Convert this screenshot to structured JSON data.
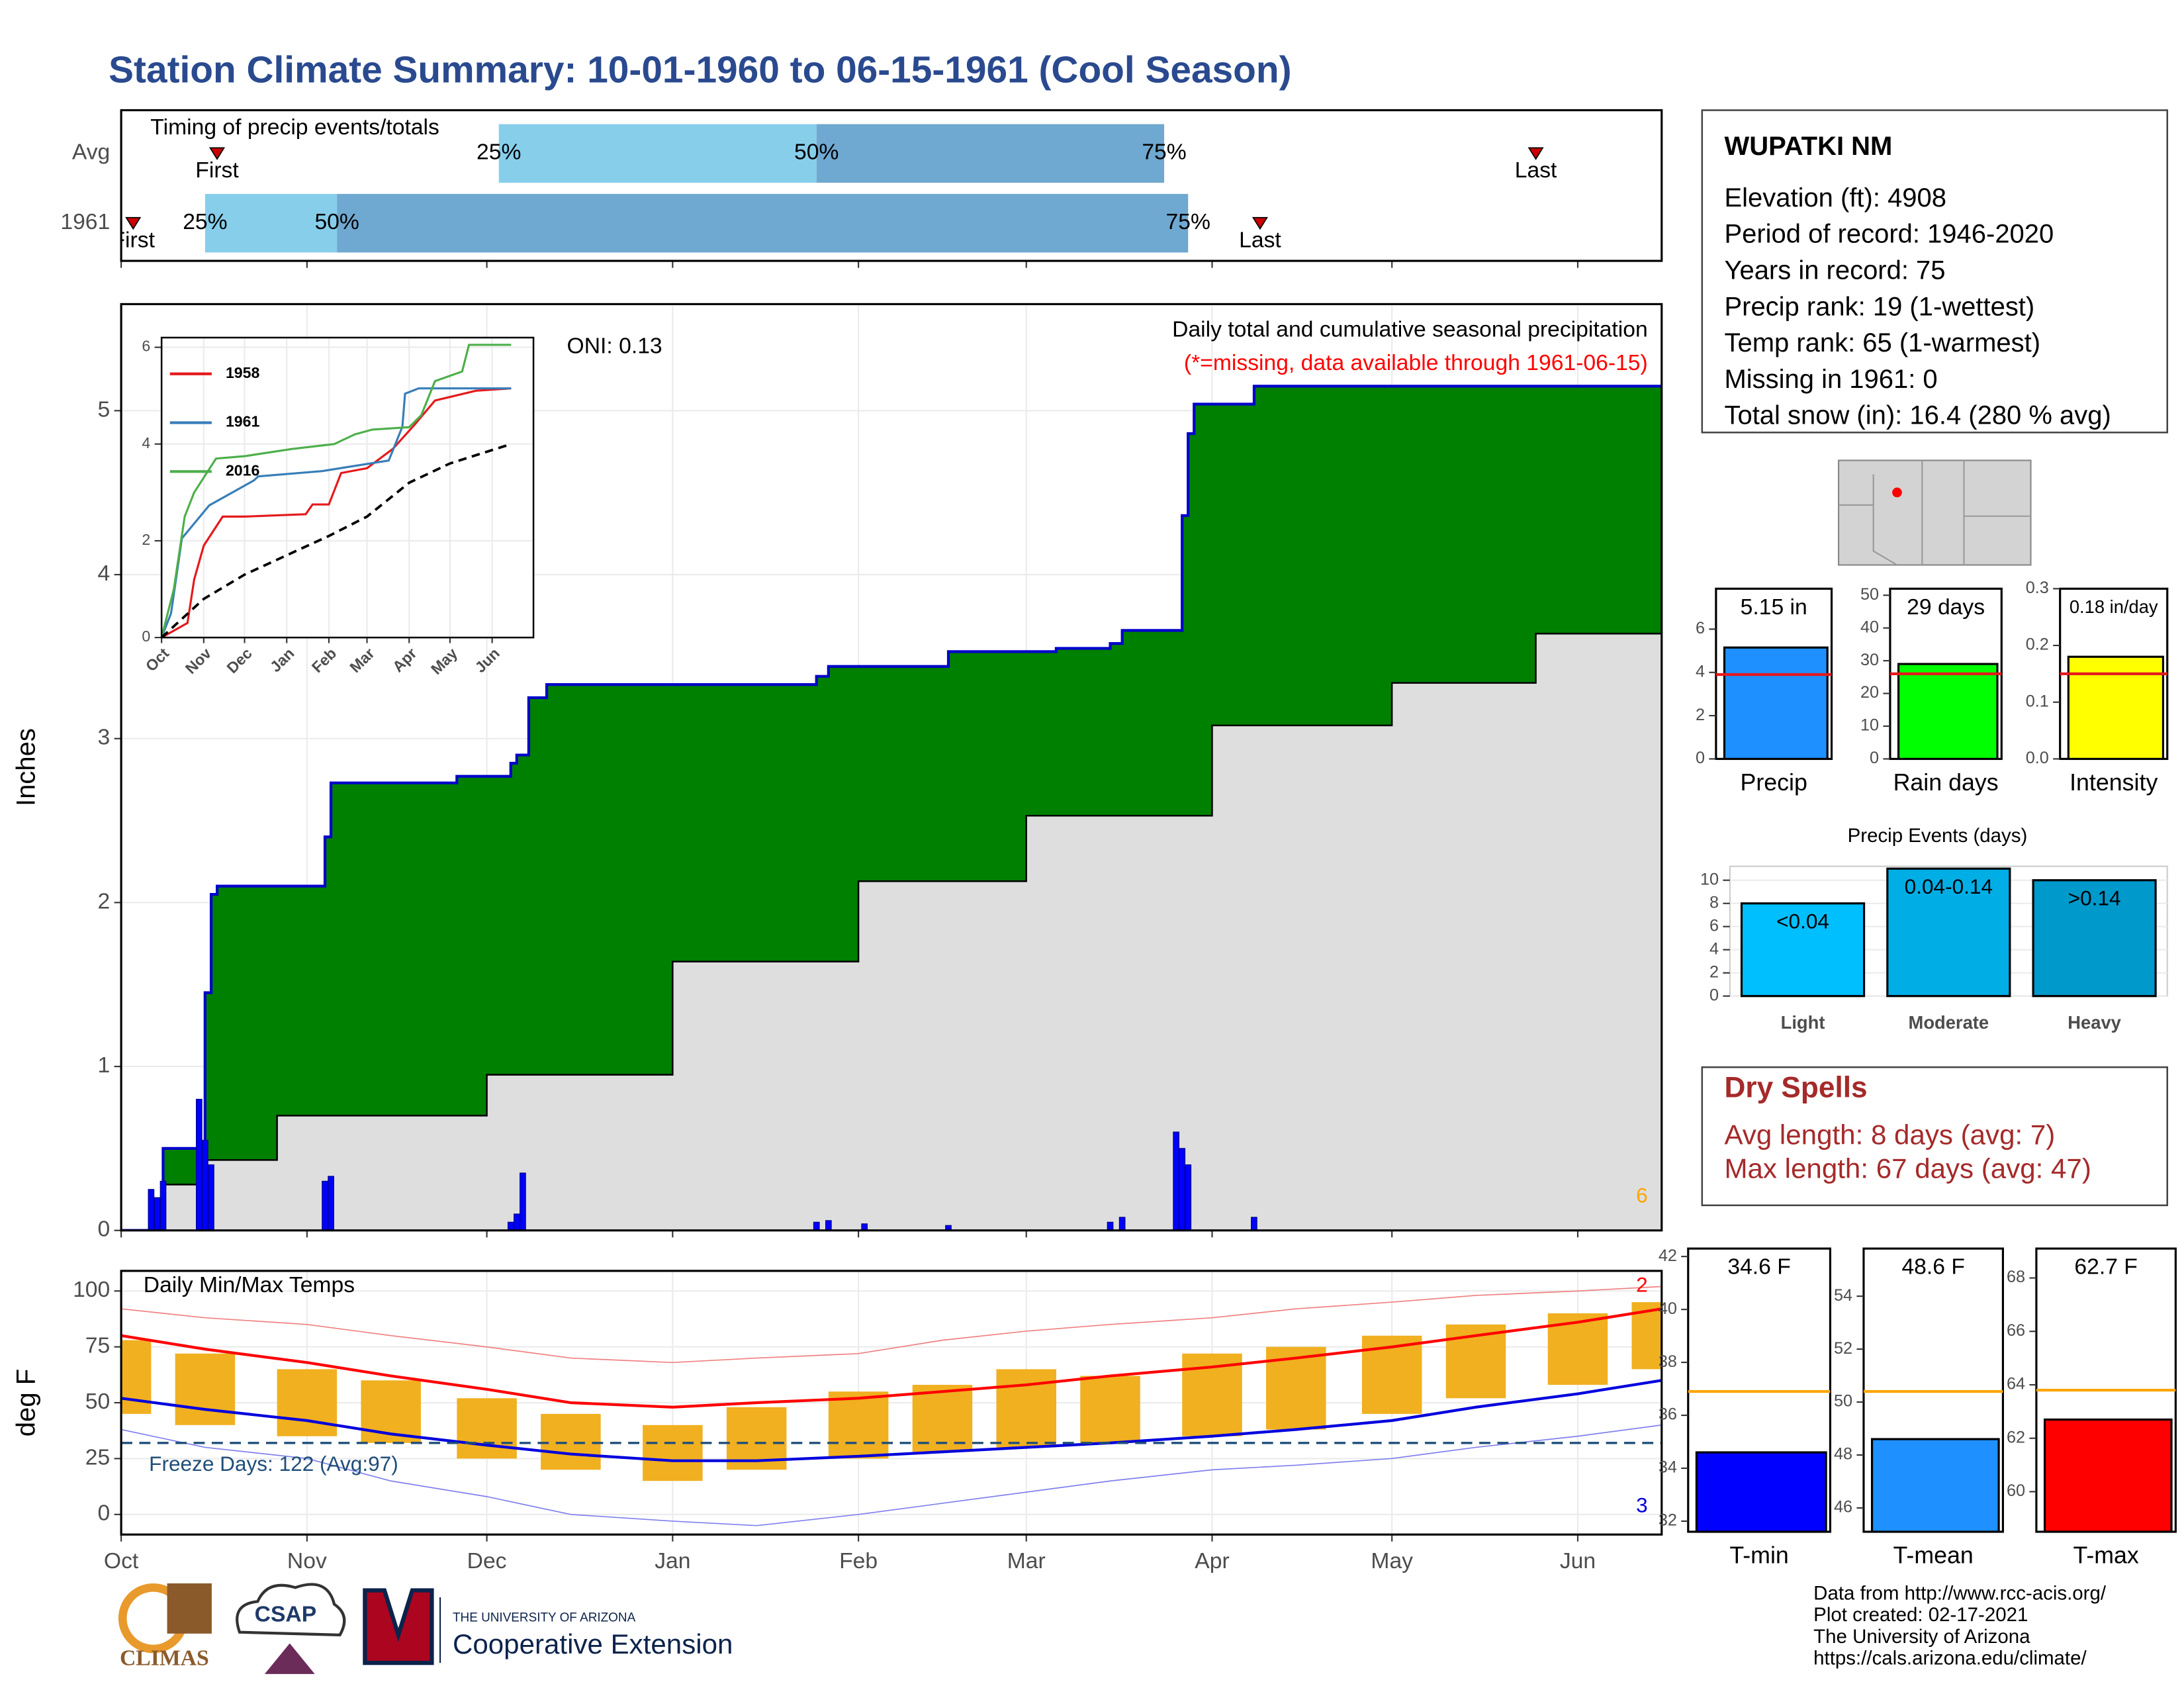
{
  "title": "Station Climate Summary: 10-01-1960 to 06-15-1961 (Cool Season)",
  "chart_data": [
    {
      "type": "timing",
      "title": "Timing of precip events/totals",
      "xlim": [
        "1960-10-01",
        "1961-06-15"
      ],
      "xticks": [
        "1960-10-01",
        "1960-11-01",
        "1960-12-01",
        "1961-01-01",
        "1961-02-01",
        "1961-03-01",
        "1961-04-01",
        "1961-05-01",
        "1961-06-01"
      ],
      "labels": {
        "first": "First",
        "last": "Last",
        "q25": "25%",
        "q50": "50%",
        "q75": "75%"
      },
      "colors": {
        "early": "#87ceeb",
        "late": "#6fa8d0",
        "marker": "#cc0000"
      },
      "rows": [
        {
          "name": "Avg",
          "first": "1960-10-17",
          "q25": "1960-12-03",
          "q50": "1961-01-25",
          "q75": "1961-03-24",
          "last": "1961-05-25"
        },
        {
          "name": "1961",
          "first": "1960-10-03",
          "q25": "1960-10-15",
          "q50": "1960-11-06",
          "q75": "1961-03-28",
          "last": "1961-04-09"
        }
      ]
    },
    {
      "type": "area",
      "ylabel": "Inches",
      "subtitle": "Daily total and cumulative seasonal precipitation",
      "note": "(*=missing, data available through 1961-06-15)",
      "oni": "ONI: 0.13",
      "corner_label": "6",
      "corner_color": "#ffa500",
      "note_color": "#ff0000",
      "xlim": [
        "1960-10-01",
        "1961-06-15"
      ],
      "xticks": [
        "1960-10-01",
        "1960-11-01",
        "1960-12-01",
        "1961-01-01",
        "1961-02-01",
        "1961-03-01",
        "1961-04-01",
        "1961-05-01",
        "1961-06-01"
      ],
      "ylim": [
        0,
        5.65
      ],
      "yticks": [
        0,
        1,
        2,
        3,
        4,
        5
      ],
      "grid": true,
      "series": [
        {
          "fill": "#008000",
          "stroke": "#0000cc",
          "x": [
            "1960-10-01",
            "1960-10-06",
            "1960-10-08",
            "1960-10-15",
            "1960-10-16",
            "1960-10-17",
            "1960-11-04",
            "1960-11-05",
            "1960-11-26",
            "1960-12-05",
            "1960-12-06",
            "1960-12-08",
            "1960-12-11",
            "1961-01-25",
            "1961-01-27",
            "1961-02-16",
            "1961-03-06",
            "1961-03-15",
            "1961-03-17",
            "1961-03-27",
            "1961-03-28",
            "1961-03-29",
            "1961-04-08",
            "1961-06-15"
          ],
          "values": [
            0,
            0.12,
            0.5,
            1.45,
            2.05,
            2.1,
            2.4,
            2.73,
            2.77,
            2.85,
            2.9,
            3.25,
            3.33,
            3.38,
            3.44,
            3.53,
            3.55,
            3.58,
            3.66,
            4.36,
            4.86,
            5.04,
            5.15,
            5.15
          ]
        },
        {
          "fill": "#dedede",
          "stroke": "#000000",
          "x": [
            "1960-10-01",
            "1960-10-08",
            "1960-10-15",
            "1960-10-27",
            "1960-12-01",
            "1961-01-01",
            "1961-02-01",
            "1961-03-01",
            "1961-04-01",
            "1961-05-01",
            "1961-05-25",
            "1961-06-15"
          ],
          "values": [
            0,
            0.28,
            0.43,
            0.7,
            0.95,
            1.64,
            2.13,
            2.53,
            3.08,
            3.34,
            3.64,
            3.83
          ]
        }
      ],
      "bars": {
        "color": "#0000ff",
        "x": [
          "1960-10-06",
          "1960-10-07",
          "1960-10-08",
          "1960-10-14",
          "1960-10-15",
          "1960-10-16",
          "1960-11-04",
          "1960-11-05",
          "1960-12-05",
          "1960-12-06",
          "1960-12-07",
          "1961-01-25",
          "1961-01-27",
          "1961-02-02",
          "1961-02-16",
          "1961-03-15",
          "1961-03-17",
          "1961-03-26",
          "1961-03-27",
          "1961-03-28",
          "1961-04-08"
        ],
        "values": [
          0.25,
          0.2,
          0.3,
          0.8,
          0.55,
          0.4,
          0.3,
          0.33,
          0.05,
          0.1,
          0.35,
          0.05,
          0.06,
          0.04,
          0.03,
          0.05,
          0.08,
          0.6,
          0.5,
          0.4,
          0.08
        ]
      }
    },
    {
      "type": "line",
      "xlim": [
        "1960-10-01",
        "1961-06-15"
      ],
      "xticks": [
        {
          "value": "1960-10-01",
          "label": "Oct"
        },
        {
          "value": "1960-11-01",
          "label": "Nov"
        },
        {
          "value": "1960-12-01",
          "label": "Dec"
        },
        {
          "value": "1961-01-01",
          "label": "Jan"
        },
        {
          "value": "1961-02-01",
          "label": "Feb"
        },
        {
          "value": "1961-03-01",
          "label": "Mar"
        },
        {
          "value": "1961-04-01",
          "label": "Apr"
        },
        {
          "value": "1961-05-01",
          "label": "May"
        },
        {
          "value": "1961-06-01",
          "label": "Jun"
        }
      ],
      "ylim": [
        0,
        6.2
      ],
      "yticks": [
        0,
        2,
        4,
        6
      ],
      "grid": true,
      "series": [
        {
          "name": "1958",
          "color": "#e41a1c",
          "x": [
            "1960-10-01",
            "1960-10-20",
            "1960-10-25",
            "1960-11-01",
            "1960-11-15",
            "1960-12-01",
            "1961-01-15",
            "1961-01-20",
            "1961-02-01",
            "1961-02-10",
            "1961-03-01",
            "1961-03-20",
            "1961-04-05",
            "1961-04-20",
            "1961-05-05",
            "1961-05-20",
            "1961-06-15"
          ],
          "values": [
            0,
            0.3,
            1.2,
            1.9,
            2.5,
            2.5,
            2.55,
            2.75,
            2.75,
            3.4,
            3.5,
            3.9,
            4.4,
            4.9,
            5.0,
            5.1,
            5.15
          ]
        },
        {
          "name": "1961",
          "color": "#377eb8",
          "x": [
            "1960-10-01",
            "1960-10-08",
            "1960-10-16",
            "1960-11-05",
            "1960-12-08",
            "1960-12-11",
            "1961-01-27",
            "1961-03-17",
            "1961-03-27",
            "1961-03-29",
            "1961-04-08",
            "1961-06-15"
          ],
          "values": [
            0,
            0.5,
            2.05,
            2.73,
            3.25,
            3.33,
            3.44,
            3.66,
            4.36,
            5.04,
            5.15,
            5.15
          ]
        },
        {
          "name": "2016",
          "color": "#4daf4a",
          "x": [
            "1960-10-01",
            "1960-10-10",
            "1960-10-18",
            "1960-10-25",
            "1960-11-10",
            "1960-12-01",
            "1961-01-05",
            "1961-02-05",
            "1961-02-20",
            "1961-03-05",
            "1961-04-01",
            "1961-04-10",
            "1961-04-20",
            "1961-05-10",
            "1961-05-15",
            "1961-06-15"
          ],
          "values": [
            0,
            1.0,
            2.5,
            3.0,
            3.7,
            3.75,
            3.9,
            4.0,
            4.2,
            4.3,
            4.35,
            4.6,
            5.3,
            5.5,
            6.05,
            6.05
          ]
        },
        {
          "color": "#000000",
          "dash": true,
          "x": [
            "1960-10-01",
            "1960-11-01",
            "1960-12-01",
            "1961-01-01",
            "1961-02-01",
            "1961-03-01",
            "1961-04-01",
            "1961-05-01",
            "1961-06-15"
          ],
          "values": [
            0,
            0.8,
            1.3,
            1.7,
            2.1,
            2.5,
            3.2,
            3.6,
            4.0
          ]
        }
      ]
    },
    {
      "type": "temps",
      "title": "Daily Min/Max Temps",
      "ylabel": "deg F",
      "xlim": [
        "1960-10-01",
        "1961-06-15"
      ],
      "xticks": [
        {
          "value": "1960-10-01",
          "label": "Oct"
        },
        {
          "value": "1960-11-01",
          "label": "Nov"
        },
        {
          "value": "1960-12-01",
          "label": "Dec"
        },
        {
          "value": "1961-01-01",
          "label": "Jan"
        },
        {
          "value": "1961-02-01",
          "label": "Feb"
        },
        {
          "value": "1961-03-01",
          "label": "Mar"
        },
        {
          "value": "1961-04-01",
          "label": "Apr"
        },
        {
          "value": "1961-05-01",
          "label": "May"
        },
        {
          "value": "1961-06-01",
          "label": "Jun"
        }
      ],
      "ylim": [
        -9,
        109
      ],
      "yticks": [
        0,
        25,
        50,
        75,
        100
      ],
      "grid": true,
      "x": [
        "1960-10-01",
        "1960-10-15",
        "1960-11-01",
        "1960-11-15",
        "1960-12-01",
        "1960-12-15",
        "1961-01-01",
        "1961-01-15",
        "1961-02-01",
        "1961-02-15",
        "1961-03-01",
        "1961-03-15",
        "1961-04-01",
        "1961-04-15",
        "1961-05-01",
        "1961-05-15",
        "1961-06-01",
        "1961-06-15"
      ],
      "range": {
        "color": "#f0b020",
        "high": [
          78,
          72,
          65,
          60,
          52,
          45,
          40,
          48,
          55,
          58,
          65,
          62,
          72,
          75,
          80,
          85,
          90,
          95
        ],
        "low": [
          45,
          40,
          35,
          32,
          25,
          20,
          15,
          20,
          25,
          28,
          30,
          32,
          35,
          38,
          45,
          52,
          58,
          65
        ]
      },
      "series": [
        {
          "color": "#f08080",
          "style": "thin",
          "values": [
            92,
            88,
            85,
            80,
            75,
            70,
            68,
            70,
            72,
            78,
            82,
            85,
            88,
            92,
            95,
            98,
            100,
            102
          ]
        },
        {
          "color": "#ff0000",
          "values": [
            80,
            74,
            68,
            62,
            56,
            50,
            48,
            50,
            52,
            55,
            58,
            62,
            66,
            70,
            75,
            80,
            86,
            92
          ]
        },
        {
          "color": "#0000dd",
          "values": [
            52,
            47,
            42,
            36,
            31,
            27,
            24,
            24,
            26,
            28,
            30,
            32,
            35,
            38,
            42,
            48,
            54,
            60
          ]
        },
        {
          "color": "#8080ee",
          "style": "thin",
          "values": [
            38,
            30,
            25,
            15,
            8,
            0,
            -3,
            -5,
            0,
            5,
            10,
            15,
            20,
            22,
            25,
            30,
            35,
            40
          ]
        }
      ],
      "freeze": {
        "value": 32,
        "label": "Freeze Days: 122 (Avg:97)",
        "color": "#1f4e79"
      },
      "corner_labels": [
        {
          "label": "2",
          "color": "#ff0000"
        },
        {
          "label": "3",
          "color": "#0000dd"
        }
      ]
    },
    {
      "type": "gauge",
      "categories": [
        "Precip"
      ],
      "values": [
        5.15
      ],
      "value_labels": [
        "5.15 in"
      ],
      "avg": 3.9,
      "color": "#1e90ff",
      "avg_color": "#e41a1c",
      "ylim": [
        0,
        7.87
      ],
      "yticks": [
        0,
        2,
        4,
        6
      ]
    },
    {
      "type": "gauge",
      "categories": [
        "Rain days"
      ],
      "values": [
        29
      ],
      "value_labels": [
        "29 days"
      ],
      "avg": 26,
      "color": "#00ff00",
      "avg_color": "#e41a1c",
      "ylim": [
        0,
        52
      ],
      "yticks": [
        0,
        10,
        20,
        30,
        40,
        50
      ]
    },
    {
      "type": "gauge",
      "categories": [
        "Intensity"
      ],
      "values": [
        0.18
      ],
      "value_labels": [
        "0.18 in/day"
      ],
      "avg": 0.15,
      "color": "#ffff00",
      "avg_color": "#e41a1c",
      "ylim": [
        0,
        0.3
      ],
      "yticks": [
        {
          "value": 0,
          "label": "0.0"
        },
        0.1,
        0.2,
        0.3
      ]
    },
    {
      "type": "bar",
      "title": "Precip Events (days)",
      "categories": [
        "Light",
        "Moderate",
        "Heavy"
      ],
      "values": [
        8,
        11,
        10
      ],
      "bar_labels": [
        "<0.04",
        "0.04-0.14",
        ">0.14"
      ],
      "colors": [
        "#00bfff",
        "#00aee6",
        "#0099cc"
      ],
      "ylim": [
        0,
        11.2
      ],
      "yticks": [
        0,
        2,
        4,
        6,
        8,
        10
      ],
      "grid": true
    },
    {
      "type": "gauge",
      "categories": [
        "T-min"
      ],
      "values": [
        34.6
      ],
      "value_labels": [
        "34.6 F"
      ],
      "avg": 36.9,
      "color": "#0000ff",
      "avg_color": "#ffa500",
      "ylim": [
        31.6,
        42.3
      ],
      "yticks": [
        32,
        34,
        36,
        38,
        40,
        42
      ]
    },
    {
      "type": "gauge",
      "categories": [
        "T-mean"
      ],
      "values": [
        48.6
      ],
      "value_labels": [
        "48.6 F"
      ],
      "avg": 50.4,
      "color": "#1e90ff",
      "avg_color": "#ffa500",
      "ylim": [
        45.1,
        55.8
      ],
      "yticks": [
        46,
        48,
        50,
        52,
        54
      ]
    },
    {
      "type": "gauge",
      "categories": [
        "T-max"
      ],
      "values": [
        62.7
      ],
      "value_labels": [
        "62.7 F"
      ],
      "avg": 63.8,
      "color": "#ff0000",
      "avg_color": "#ffa500",
      "ylim": [
        58.5,
        69.1
      ],
      "yticks": [
        60,
        62,
        64,
        66,
        68
      ]
    }
  ],
  "station": {
    "name": "WUPATKI NM",
    "lines": [
      "Elevation (ft): 4908",
      "Period of record: 1946-2020",
      "Years in record: 75",
      "Precip rank: 19 (1-wettest)",
      "Temp rank: 65 (1-warmest)",
      "Missing in 1961: 0",
      "Total snow (in): 16.4 (280 % avg)"
    ]
  },
  "dry_spells": {
    "title": "Dry Spells",
    "lines": [
      "Avg length: 8 days (avg: 7)",
      "Max length: 67 days (avg: 47)"
    ]
  },
  "footer": {
    "credits": [
      "Data from http://www.rcc-acis.org/",
      "Plot created: 02-17-2021",
      "The University of Arizona",
      "https://cals.arizona.edu/climate/"
    ],
    "logos": {
      "climas": "CLIMAS",
      "csap": "CSAP",
      "university": "THE UNIVERSITY OF ARIZONA",
      "extension": "Cooperative Extension"
    }
  }
}
